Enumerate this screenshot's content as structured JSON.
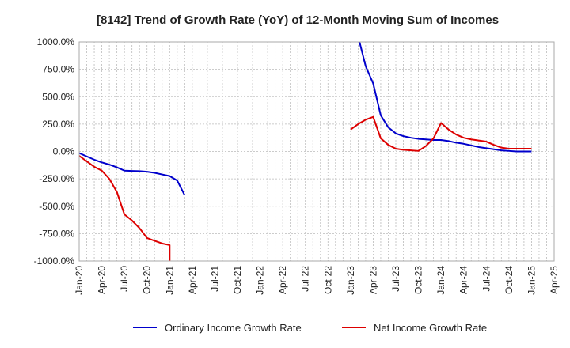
{
  "chart_data": {
    "type": "line",
    "title": "[8142]  Trend of Growth Rate (YoY) of 12-Month Moving Sum of Incomes",
    "xlabel": "",
    "ylabel": "",
    "ylim": [
      -1000,
      1000
    ],
    "y_ticks": [
      1000,
      750,
      500,
      250,
      0,
      -250,
      -500,
      -750,
      -1000
    ],
    "y_tick_labels": [
      "1000.0%",
      "750.0%",
      "500.0%",
      "250.0%",
      "0.0%",
      "-250.0%",
      "-500.0%",
      "-750.0%",
      "-1000.0%"
    ],
    "x_ticks": [
      "2020-01",
      "2020-04",
      "2020-07",
      "2020-10",
      "2021-01",
      "2021-04",
      "2021-07",
      "2021-10",
      "2022-01",
      "2022-04",
      "2022-07",
      "2022-10",
      "2023-01",
      "2023-04",
      "2023-07",
      "2023-10",
      "2024-01",
      "2024-04",
      "2024-07",
      "2024-10",
      "2025-01",
      "2025-04"
    ],
    "x_tick_labels": [
      "Jan-20",
      "Apr-20",
      "Jul-20",
      "Oct-20",
      "Jan-21",
      "Apr-21",
      "Jul-21",
      "Oct-21",
      "Jan-22",
      "Apr-22",
      "Jul-22",
      "Oct-22",
      "Jan-23",
      "Apr-23",
      "Jul-23",
      "Oct-23",
      "Jan-24",
      "Apr-24",
      "Jul-24",
      "Oct-24",
      "Jan-25",
      "Apr-25"
    ],
    "xlim": [
      "2020-01",
      "2025-04"
    ],
    "grid": true,
    "legend_position": "bottom",
    "series": [
      {
        "name": "Ordinary Income Growth Rate",
        "color": "#0000cc",
        "points": [
          [
            "2020-01",
            -15
          ],
          [
            "2020-02",
            -45
          ],
          [
            "2020-03",
            -75
          ],
          [
            "2020-04",
            -100
          ],
          [
            "2020-05",
            -120
          ],
          [
            "2020-06",
            -145
          ],
          [
            "2020-07",
            -175
          ],
          [
            "2020-08",
            -178
          ],
          [
            "2020-09",
            -180
          ],
          [
            "2020-10",
            -185
          ],
          [
            "2020-11",
            -195
          ],
          [
            "2020-12",
            -210
          ],
          [
            "2021-01",
            -225
          ],
          [
            "2021-02",
            -265
          ],
          [
            "2021-03",
            -400
          ],
          [
            "2023-02",
            1050
          ],
          [
            "2023-03",
            780
          ],
          [
            "2023-04",
            620
          ],
          [
            "2023-05",
            330
          ],
          [
            "2023-06",
            220
          ],
          [
            "2023-07",
            165
          ],
          [
            "2023-08",
            140
          ],
          [
            "2023-09",
            125
          ],
          [
            "2023-10",
            115
          ],
          [
            "2023-11",
            110
          ],
          [
            "2023-12",
            105
          ],
          [
            "2024-01",
            105
          ],
          [
            "2024-02",
            95
          ],
          [
            "2024-03",
            80
          ],
          [
            "2024-04",
            70
          ],
          [
            "2024-05",
            55
          ],
          [
            "2024-06",
            40
          ],
          [
            "2024-07",
            30
          ],
          [
            "2024-08",
            20
          ],
          [
            "2024-09",
            10
          ],
          [
            "2024-10",
            5
          ],
          [
            "2024-11",
            0
          ],
          [
            "2024-12",
            0
          ],
          [
            "2025-01",
            0
          ]
        ]
      },
      {
        "name": "Net Income Growth Rate",
        "color": "#dd0000",
        "points": [
          [
            "2020-01",
            -40
          ],
          [
            "2020-02",
            -90
          ],
          [
            "2020-03",
            -140
          ],
          [
            "2020-04",
            -175
          ],
          [
            "2020-05",
            -250
          ],
          [
            "2020-06",
            -370
          ],
          [
            "2020-07",
            -575
          ],
          [
            "2020-08",
            -630
          ],
          [
            "2020-09",
            -700
          ],
          [
            "2020-10",
            -790
          ],
          [
            "2020-11",
            -815
          ],
          [
            "2020-12",
            -840
          ],
          [
            "2021-01",
            -855
          ],
          [
            "2021-01",
            -1050
          ],
          [
            "2023-01",
            200
          ],
          [
            "2023-02",
            250
          ],
          [
            "2023-03",
            290
          ],
          [
            "2023-04",
            315
          ],
          [
            "2023-05",
            120
          ],
          [
            "2023-06",
            60
          ],
          [
            "2023-07",
            25
          ],
          [
            "2023-08",
            15
          ],
          [
            "2023-09",
            10
          ],
          [
            "2023-10",
            5
          ],
          [
            "2023-11",
            50
          ],
          [
            "2023-12",
            120
          ],
          [
            "2024-01",
            260
          ],
          [
            "2024-02",
            200
          ],
          [
            "2024-03",
            155
          ],
          [
            "2024-04",
            125
          ],
          [
            "2024-05",
            110
          ],
          [
            "2024-06",
            100
          ],
          [
            "2024-07",
            90
          ],
          [
            "2024-08",
            60
          ],
          [
            "2024-09",
            35
          ],
          [
            "2024-10",
            25
          ],
          [
            "2024-11",
            25
          ],
          [
            "2024-12",
            25
          ],
          [
            "2025-01",
            25
          ]
        ]
      }
    ]
  }
}
